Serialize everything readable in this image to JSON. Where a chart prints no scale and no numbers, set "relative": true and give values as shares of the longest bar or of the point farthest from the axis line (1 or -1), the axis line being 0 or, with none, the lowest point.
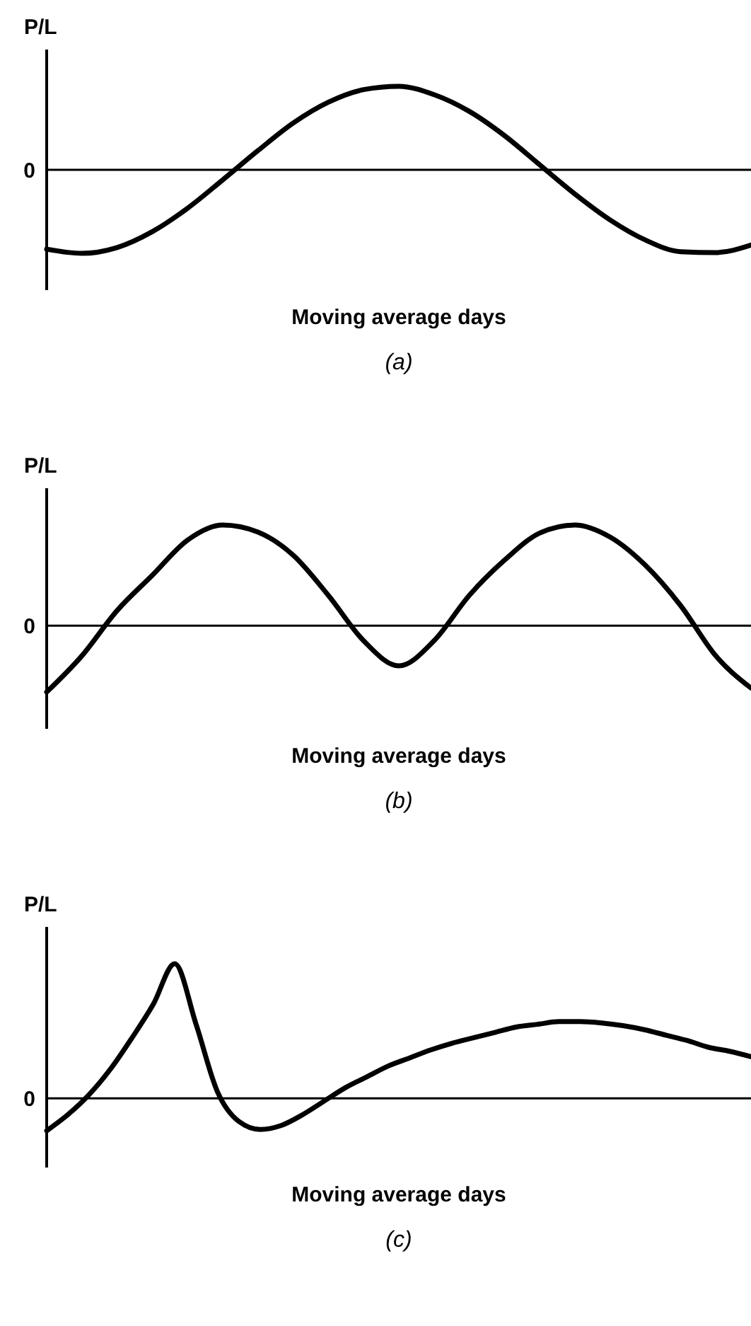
{
  "chart_data": [
    {
      "type": "line",
      "title": "(a)",
      "xlabel": "Moving average days",
      "ylabel": "P/L",
      "relative": true,
      "categories": [
        null,
        null,
        null,
        null,
        null,
        null,
        null,
        null,
        null,
        null,
        null,
        null,
        null,
        null,
        null,
        null,
        null,
        null,
        null,
        null,
        null
      ],
      "series": [
        {
          "color": "#000000",
          "values": [
            -0.95,
            -1.0,
            -0.93,
            -0.74,
            -0.46,
            -0.12,
            0.23,
            0.56,
            0.81,
            0.96,
            1.0,
            0.9,
            0.7,
            0.41,
            0.06,
            -0.29,
            -0.6,
            -0.84,
            -0.98,
            -0.99,
            -0.9
          ]
        }
      ],
      "ref_lines": [
        {
          "axis": "y",
          "value": 0,
          "label": "0"
        }
      ]
    },
    {
      "type": "line",
      "title": "(b)",
      "xlabel": "Moving average days",
      "ylabel": "P/L",
      "relative": true,
      "categories": [
        null,
        null,
        null,
        null,
        null,
        null,
        null,
        null,
        null,
        null,
        null,
        null,
        null,
        null,
        null,
        null,
        null,
        null,
        null,
        null,
        null
      ],
      "series": [
        {
          "color": "#000000",
          "values": [
            -0.66,
            -0.3,
            0.15,
            0.5,
            0.85,
            1.0,
            0.93,
            0.7,
            0.3,
            -0.15,
            -0.4,
            -0.15,
            0.3,
            0.65,
            0.92,
            1.0,
            0.88,
            0.6,
            0.2,
            -0.3,
            -0.62
          ]
        }
      ],
      "ref_lines": [
        {
          "axis": "y",
          "value": 0,
          "label": "0"
        }
      ]
    },
    {
      "type": "line",
      "title": "(c)",
      "xlabel": "Moving average days",
      "ylabel": "P/L",
      "relative": true,
      "categories": [
        null,
        null,
        null,
        null,
        null,
        null,
        null,
        null,
        null,
        null,
        null,
        null,
        null,
        null,
        null,
        null,
        null,
        null,
        null,
        null,
        null,
        null,
        null,
        null,
        null,
        null,
        null,
        null,
        null,
        null,
        null,
        null,
        null,
        null
      ],
      "series": [
        {
          "color": "#000000",
          "values": [
            -0.24,
            -0.12,
            0.03,
            0.22,
            0.45,
            0.7,
            1.0,
            0.55,
            0.05,
            -0.17,
            -0.23,
            -0.2,
            -0.12,
            -0.02,
            0.08,
            0.16,
            0.24,
            0.3,
            0.36,
            0.41,
            0.45,
            0.49,
            0.53,
            0.55,
            0.57,
            0.57,
            0.56,
            0.54,
            0.51,
            0.47,
            0.43,
            0.38,
            0.35,
            0.31
          ]
        }
      ],
      "ref_lines": [
        {
          "axis": "y",
          "value": 0,
          "label": "0"
        }
      ]
    }
  ]
}
